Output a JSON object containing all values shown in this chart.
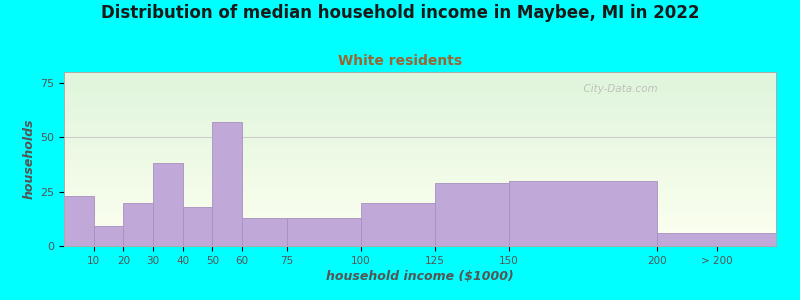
{
  "title": "Distribution of median household income in Maybee, MI in 2022",
  "subtitle": "White residents",
  "xlabel": "household income ($1000)",
  "ylabel": "households",
  "background_color": "#00ffff",
  "plot_bg_top": "#dff5dc",
  "plot_bg_bottom": "#fdfff0",
  "bar_color": "#c0a8d8",
  "bar_edge_color": "#a890c0",
  "title_fontsize": 12,
  "title_color": "#1a1a1a",
  "subtitle_fontsize": 10,
  "subtitle_color": "#996633",
  "bar_heights": [
    23,
    9,
    20,
    38,
    18,
    57,
    13,
    13,
    20,
    29,
    30,
    6
  ],
  "bar_lefts": [
    0,
    10,
    20,
    30,
    40,
    50,
    60,
    75,
    100,
    125,
    150,
    200
  ],
  "bar_widths": [
    10,
    10,
    10,
    10,
    10,
    10,
    15,
    25,
    25,
    25,
    50,
    40
  ],
  "xtick_positions": [
    10,
    20,
    30,
    40,
    50,
    60,
    75,
    100,
    125,
    150,
    200,
    220
  ],
  "xtick_labels": [
    "10",
    "20",
    "30",
    "40",
    "50",
    "60",
    "75",
    "100",
    "125",
    "150",
    "200",
    "> 200"
  ],
  "xlim": [
    0,
    240
  ],
  "ylim": [
    0,
    80
  ],
  "yticks": [
    0,
    25,
    50,
    75
  ],
  "watermark": "  City-Data.com",
  "grid_y": 50,
  "axis_color": "#555555"
}
